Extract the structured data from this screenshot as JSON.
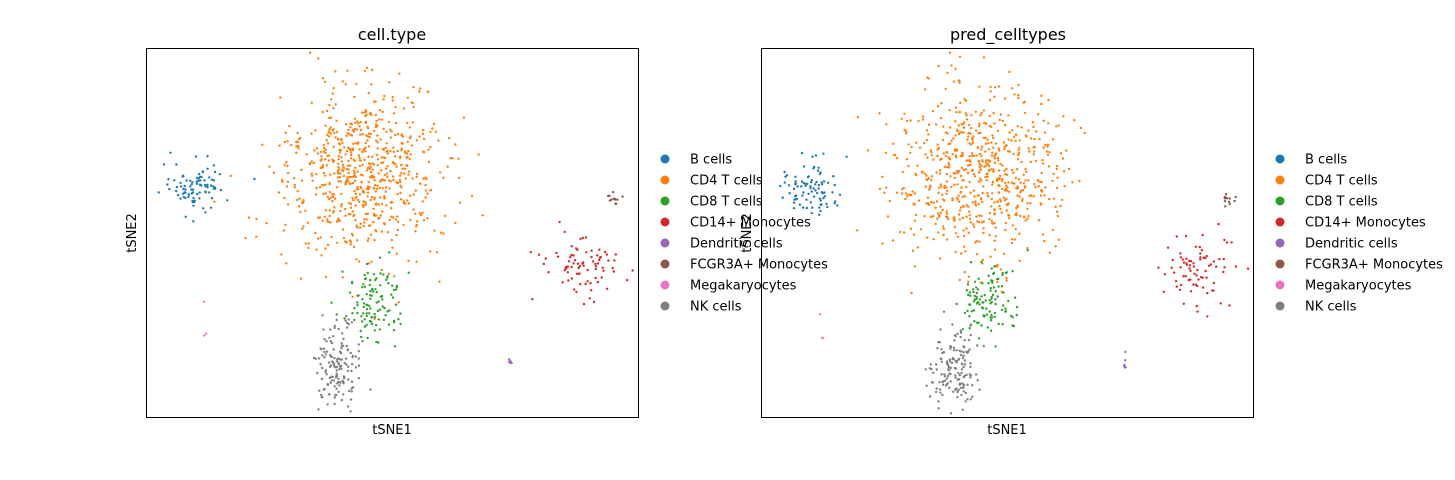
{
  "palette": {
    "B cells": "#1f77b4",
    "CD4 T cells": "#ff7f0e",
    "CD8 T cells": "#2ca02c",
    "CD14+ Monocytes": "#d62728",
    "Dendritic cells": "#9467bd",
    "FCGR3A+ Monocytes": "#8c564b",
    "Megakaryocytes": "#e377c2",
    "NK cells": "#7f7f7f"
  },
  "chart_data": [
    {
      "type": "scatter",
      "title": "cell.type",
      "xlabel": "tSNE1",
      "ylabel": "tSNE2",
      "grid": false,
      "ticks": false,
      "xlim": [
        0,
        100
      ],
      "ylim": [
        0,
        100
      ],
      "legend": {
        "placement": "right-outside",
        "entries": [
          "B cells",
          "CD4 T cells",
          "CD8 T cells",
          "CD14+ Monocytes",
          "Dendritic cells",
          "FCGR3A+ Monocytes",
          "Megakaryocytes",
          "NK cells"
        ]
      },
      "clusters": [
        {
          "label": "B cells",
          "cx": 10,
          "cy": 62,
          "rx": 5,
          "ry": 6,
          "n": 90
        },
        {
          "label": "CD4 T cells",
          "cx": 44,
          "cy": 66,
          "rx": 14,
          "ry": 19,
          "n": 700
        },
        {
          "label": "CD8 T cells",
          "cx": 46,
          "cy": 32,
          "rx": 5,
          "ry": 9,
          "n": 110
        },
        {
          "label": "CD14+ Monocytes",
          "cx": 89,
          "cy": 40,
          "rx": 6,
          "ry": 8,
          "n": 80
        },
        {
          "label": "Dendritic cells",
          "cx": 74,
          "cy": 15,
          "rx": 0.5,
          "ry": 1.5,
          "n": 6
        },
        {
          "label": "FCGR3A+ Monocytes",
          "cx": 95,
          "cy": 59,
          "rx": 1,
          "ry": 1.5,
          "n": 12
        },
        {
          "label": "Megakaryocytes",
          "cx": 12,
          "cy": 25,
          "rx": 0.8,
          "ry": 8,
          "n": 3
        },
        {
          "label": "NK cells",
          "cx": 39,
          "cy": 13,
          "rx": 4,
          "ry": 10,
          "n": 150
        }
      ]
    },
    {
      "type": "scatter",
      "title": "pred_celltypes",
      "xlabel": "tSNE1",
      "ylabel": "tSNE2",
      "grid": false,
      "ticks": false,
      "xlim": [
        0,
        100
      ],
      "ylim": [
        0,
        100
      ],
      "legend": {
        "placement": "right-outside",
        "entries": [
          "B cells",
          "CD4 T cells",
          "CD8 T cells",
          "CD14+ Monocytes",
          "Dendritic cells",
          "FCGR3A+ Monocytes",
          "Megakaryocytes",
          "NK cells"
        ]
      },
      "clusters": [
        {
          "label": "B cells",
          "cx": 10,
          "cy": 62,
          "rx": 5,
          "ry": 6,
          "n": 90
        },
        {
          "label": "CD4 T cells",
          "cx": 44,
          "cy": 66,
          "rx": 14,
          "ry": 19,
          "n": 700
        },
        {
          "label": "CD8 T cells",
          "cx": 46,
          "cy": 32,
          "rx": 5,
          "ry": 9,
          "n": 110
        },
        {
          "label": "CD14+ Monocytes",
          "cx": 89,
          "cy": 40,
          "rx": 6,
          "ry": 8,
          "n": 80
        },
        {
          "label": "Dendritic cells",
          "cx": 74,
          "cy": 15,
          "rx": 0.5,
          "ry": 1.5,
          "n": 6
        },
        {
          "label": "FCGR3A+ Monocytes",
          "cx": 95,
          "cy": 59,
          "rx": 1,
          "ry": 1.5,
          "n": 12
        },
        {
          "label": "Megakaryocytes",
          "cx": 12,
          "cy": 25,
          "rx": 0.8,
          "ry": 8,
          "n": 3
        },
        {
          "label": "NK cells",
          "cx": 39,
          "cy": 13,
          "rx": 4,
          "ry": 10,
          "n": 150
        }
      ]
    }
  ]
}
